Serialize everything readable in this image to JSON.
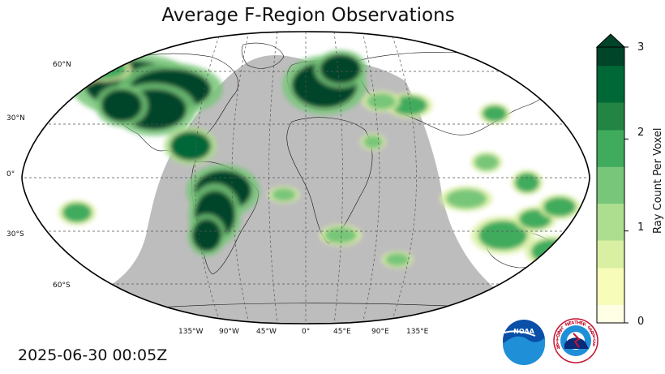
{
  "title": "Average F-Region Observations",
  "timestamp": "2025-06-30 00:05Z",
  "projection": "robinson",
  "background_colors": {
    "night_shade": "#bdbdbd",
    "ocean": "#ffffff",
    "land_lines": "#000000"
  },
  "graticule": {
    "lat_labels": [
      "60°N",
      "30°N",
      "0°",
      "30°S",
      "60°S"
    ],
    "lon_labels": [
      "135°W",
      "90°W",
      "45°W",
      "0°",
      "45°E",
      "90°E",
      "135°E"
    ]
  },
  "colorbar": {
    "label": "Ray Count Per Voxel",
    "ticks": [
      "0",
      "1",
      "2",
      "3"
    ],
    "min": 0,
    "max": 3,
    "extend": "max",
    "colormap": "YlGn",
    "colors": [
      "#ffffe5",
      "#f7fcb9",
      "#d9f0a3",
      "#addd8e",
      "#78c679",
      "#41ab5d",
      "#238443",
      "#006837",
      "#004529"
    ]
  },
  "logos": [
    {
      "name": "noaa-logo",
      "text": "NOAA"
    },
    {
      "name": "nws-logo",
      "text": "NATIONAL WEATHER SERVICE"
    }
  ],
  "observation_regions": [
    {
      "region": "North America",
      "intensity": 3
    },
    {
      "region": "Europe",
      "intensity": 3
    },
    {
      "region": "South America",
      "intensity": 3
    },
    {
      "region": "Alaska",
      "intensity": 2
    },
    {
      "region": "Central America",
      "intensity": 2.5
    },
    {
      "region": "Japan",
      "intensity": 2
    },
    {
      "region": "Australia",
      "intensity": 2
    },
    {
      "region": "Indonesia",
      "intensity": 1.5
    },
    {
      "region": "South Pacific",
      "intensity": 2
    },
    {
      "region": "Middle East",
      "intensity": 1.5
    },
    {
      "region": "Southern Africa",
      "intensity": 1.5
    }
  ]
}
